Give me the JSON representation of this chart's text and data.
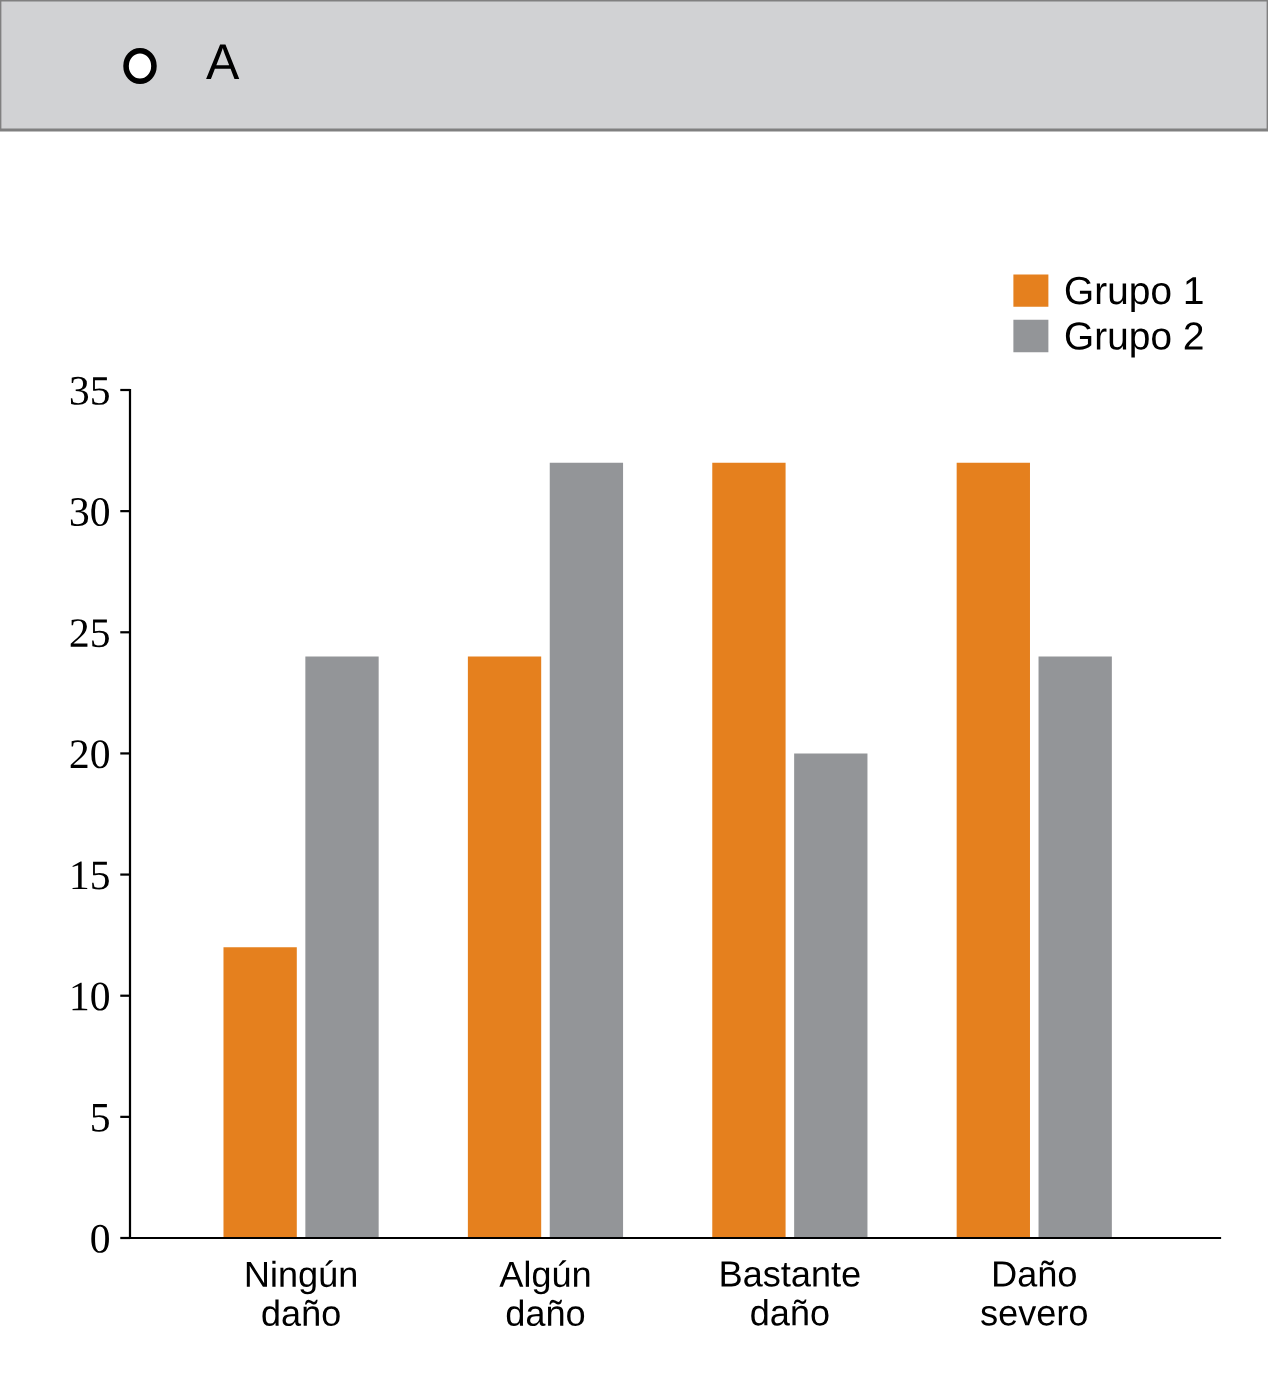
{
  "chart_data": {
    "type": "bar",
    "title": "A",
    "categories": [
      "Ningún\ndaño",
      "Algún\ndaño",
      "Bastante\ndaño",
      "Daño\nsevero"
    ],
    "series": [
      {
        "name": "Grupo 1",
        "color": "#e5801e",
        "values": [
          12,
          24,
          32,
          32
        ]
      },
      {
        "name": "Grupo 2",
        "color": "#939598",
        "values": [
          24,
          32,
          20,
          24
        ]
      }
    ],
    "ylim": [
      0,
      35
    ],
    "yticks": [
      0,
      5,
      10,
      15,
      20,
      25,
      30,
      35
    ],
    "grid": false,
    "legend": "top right"
  }
}
